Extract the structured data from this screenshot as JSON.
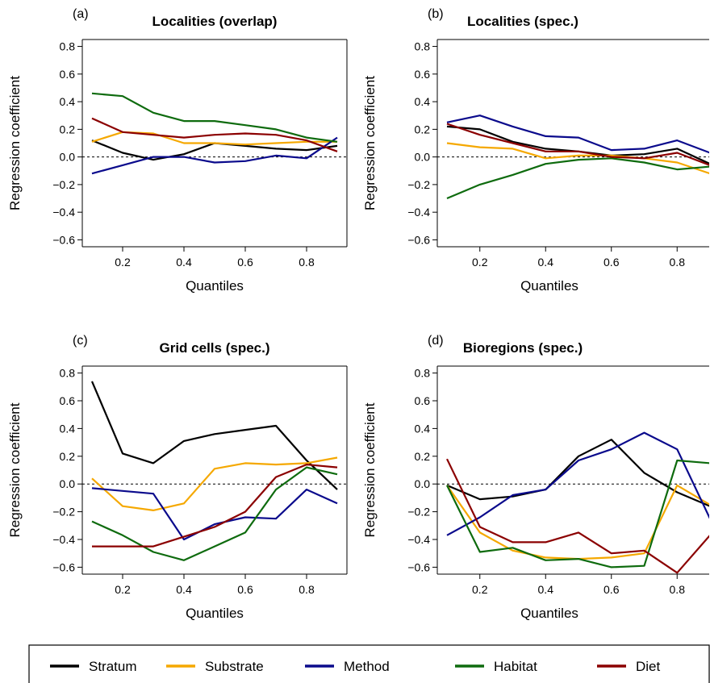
{
  "colors": {
    "Stratum": "#000000",
    "Substrate": "#F5A800",
    "Method": "#0A0A8C",
    "Habitat": "#0E6B0E",
    "Diet": "#8B0000"
  },
  "legend": [
    "Stratum",
    "Substrate",
    "Method",
    "Habitat",
    "Diet"
  ],
  "chart_data": [
    {
      "type": "line",
      "panel": "(a)",
      "title": "Localities (overlap)",
      "xlabel": "Quantiles",
      "ylabel": "Regression coefficient",
      "xlim": [
        0.1,
        0.9
      ],
      "ylim": [
        -0.6,
        0.8
      ],
      "xticks": [
        "0.2",
        "0.4",
        "0.6",
        "0.8"
      ],
      "yticks": [
        "−0.6",
        "−0.4",
        "−0.2",
        "0.0",
        "0.2",
        "0.4",
        "0.6",
        "0.8"
      ],
      "x": [
        0.1,
        0.2,
        0.3,
        0.4,
        0.5,
        0.6,
        0.7,
        0.8,
        0.9
      ],
      "series": [
        {
          "name": "Stratum",
          "values": [
            0.12,
            0.03,
            -0.02,
            0.02,
            0.1,
            0.08,
            0.06,
            0.05,
            0.08
          ]
        },
        {
          "name": "Substrate",
          "values": [
            0.11,
            0.18,
            0.17,
            0.1,
            0.1,
            0.09,
            0.1,
            0.11,
            0.11
          ]
        },
        {
          "name": "Method",
          "values": [
            -0.12,
            -0.06,
            0.0,
            0.0,
            -0.04,
            -0.03,
            0.01,
            -0.01,
            0.14
          ]
        },
        {
          "name": "Habitat",
          "values": [
            0.46,
            0.44,
            0.32,
            0.26,
            0.26,
            0.23,
            0.2,
            0.14,
            0.11
          ]
        },
        {
          "name": "Diet",
          "values": [
            0.28,
            0.18,
            0.16,
            0.14,
            0.16,
            0.17,
            0.16,
            0.12,
            0.04
          ]
        }
      ]
    },
    {
      "type": "line",
      "panel": "(b)",
      "title": "Localities (spec.)",
      "xlabel": "Quantiles",
      "ylabel": "Regression coefficient",
      "xlim": [
        0.1,
        0.9
      ],
      "ylim": [
        -0.6,
        0.8
      ],
      "xticks": [
        "0.2",
        "0.4",
        "0.6",
        "0.8"
      ],
      "yticks": [
        "−0.6",
        "−0.4",
        "−0.2",
        "0.0",
        "0.2",
        "0.4",
        "0.6",
        "0.8"
      ],
      "x": [
        0.1,
        0.2,
        0.3,
        0.4,
        0.5,
        0.6,
        0.7,
        0.8,
        0.9
      ],
      "series": [
        {
          "name": "Stratum",
          "values": [
            0.22,
            0.2,
            0.11,
            0.06,
            0.04,
            0.01,
            0.02,
            0.06,
            -0.05
          ]
        },
        {
          "name": "Substrate",
          "values": [
            0.1,
            0.07,
            0.06,
            -0.01,
            0.01,
            0.01,
            -0.01,
            -0.04,
            -0.12
          ]
        },
        {
          "name": "Method",
          "values": [
            0.25,
            0.3,
            0.22,
            0.15,
            0.14,
            0.05,
            0.06,
            0.12,
            0.03
          ]
        },
        {
          "name": "Habitat",
          "values": [
            -0.3,
            -0.2,
            -0.13,
            -0.05,
            -0.02,
            -0.01,
            -0.04,
            -0.09,
            -0.07
          ]
        },
        {
          "name": "Diet",
          "values": [
            0.24,
            0.16,
            0.1,
            0.04,
            0.04,
            0.0,
            -0.01,
            0.03,
            -0.06
          ]
        }
      ]
    },
    {
      "type": "line",
      "panel": "(c)",
      "title": "Grid cells (spec.)",
      "xlabel": "Quantiles",
      "ylabel": "Regression coefficient",
      "xlim": [
        0.1,
        0.9
      ],
      "ylim": [
        -0.6,
        0.8
      ],
      "xticks": [
        "0.2",
        "0.4",
        "0.6",
        "0.8"
      ],
      "yticks": [
        "−0.6",
        "−0.4",
        "−0.2",
        "0.0",
        "0.2",
        "0.4",
        "0.6",
        "0.8"
      ],
      "x": [
        0.1,
        0.2,
        0.3,
        0.4,
        0.5,
        0.6,
        0.7,
        0.8,
        0.9
      ],
      "series": [
        {
          "name": "Stratum",
          "values": [
            0.74,
            0.22,
            0.15,
            0.31,
            0.36,
            0.39,
            0.42,
            0.17,
            -0.04
          ]
        },
        {
          "name": "Substrate",
          "values": [
            0.04,
            -0.16,
            -0.19,
            -0.14,
            0.11,
            0.15,
            0.14,
            0.15,
            0.19
          ]
        },
        {
          "name": "Method",
          "values": [
            -0.03,
            -0.05,
            -0.07,
            -0.4,
            -0.29,
            -0.24,
            -0.25,
            -0.04,
            -0.14
          ]
        },
        {
          "name": "Habitat",
          "values": [
            -0.27,
            -0.37,
            -0.49,
            -0.55,
            -0.45,
            -0.35,
            -0.04,
            0.12,
            0.07
          ]
        },
        {
          "name": "Diet",
          "values": [
            -0.45,
            -0.45,
            -0.45,
            -0.38,
            -0.31,
            -0.2,
            0.05,
            0.14,
            0.12
          ]
        }
      ]
    },
    {
      "type": "line",
      "panel": "(d)",
      "title": "Bioregions (spec.)",
      "xlabel": "Quantiles",
      "ylabel": "Regression coefficient",
      "xlim": [
        0.1,
        0.9
      ],
      "ylim": [
        -0.6,
        0.8
      ],
      "xticks": [
        "0.2",
        "0.4",
        "0.6",
        "0.8"
      ],
      "yticks": [
        "−0.6",
        "−0.4",
        "−0.2",
        "0.0",
        "0.2",
        "0.4",
        "0.6",
        "0.8"
      ],
      "x": [
        0.1,
        0.2,
        0.3,
        0.4,
        0.5,
        0.6,
        0.7,
        0.8,
        0.9
      ],
      "series": [
        {
          "name": "Stratum",
          "values": [
            -0.01,
            -0.11,
            -0.09,
            -0.04,
            0.2,
            0.32,
            0.08,
            -0.06,
            -0.16
          ]
        },
        {
          "name": "Substrate",
          "values": [
            -0.01,
            -0.35,
            -0.48,
            -0.53,
            -0.54,
            -0.53,
            -0.5,
            -0.01,
            -0.15
          ]
        },
        {
          "name": "Method",
          "values": [
            -0.37,
            -0.24,
            -0.08,
            -0.04,
            0.17,
            0.25,
            0.37,
            0.25,
            -0.25
          ]
        },
        {
          "name": "Habitat",
          "values": [
            -0.01,
            -0.49,
            -0.46,
            -0.55,
            -0.54,
            -0.6,
            -0.59,
            0.17,
            0.15
          ]
        },
        {
          "name": "Diet",
          "values": [
            0.18,
            -0.31,
            -0.42,
            -0.42,
            -0.35,
            -0.5,
            -0.48,
            -0.64,
            -0.37
          ]
        }
      ]
    }
  ]
}
